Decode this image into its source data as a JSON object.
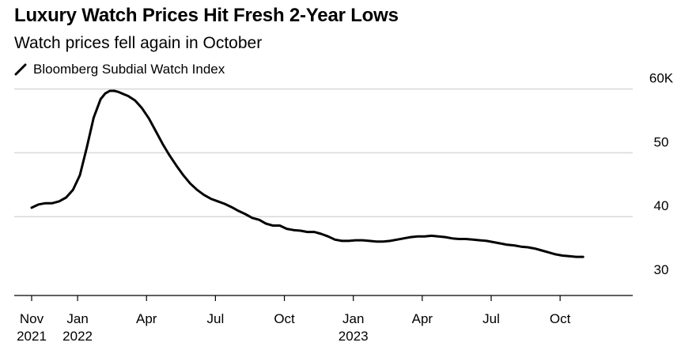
{
  "title": "Luxury Watch Prices Hit Fresh 2-Year Lows",
  "subtitle": "Watch prices fell again in October",
  "legend": {
    "label": "Bloomberg Subdial Watch Index",
    "icon": "line-icon"
  },
  "colors": {
    "line": "#000000",
    "grid": "#d9d9d9",
    "axis": "#000000",
    "text": "#000000"
  },
  "chart_data": {
    "type": "line",
    "title": "Luxury Watch Prices Hit Fresh 2-Year Lows",
    "subtitle": "Watch prices fell again in October",
    "xlabel": "",
    "ylabel": "",
    "ylim": [
      28,
      60
    ],
    "grid": true,
    "legend_position": "top-left",
    "yticks": [
      {
        "value": 30,
        "label": "30"
      },
      {
        "value": 40,
        "label": "40"
      },
      {
        "value": 50,
        "label": "50"
      },
      {
        "value": 60,
        "label": "60K"
      }
    ],
    "xticks": [
      {
        "month": 0,
        "label1": "Nov",
        "label2": "2021"
      },
      {
        "month": 2,
        "label1": "Jan",
        "label2": "2022"
      },
      {
        "month": 5,
        "label1": "Apr",
        "label2": ""
      },
      {
        "month": 8,
        "label1": "Jul",
        "label2": ""
      },
      {
        "month": 11,
        "label1": "Oct",
        "label2": ""
      },
      {
        "month": 14,
        "label1": "Jan",
        "label2": "2023"
      },
      {
        "month": 17,
        "label1": "Apr",
        "label2": ""
      },
      {
        "month": 20,
        "label1": "Jul",
        "label2": ""
      },
      {
        "month": 23,
        "label1": "Oct",
        "label2": ""
      }
    ],
    "series": [
      {
        "name": "Bloomberg Subdial Watch Index",
        "x": [
          0,
          0.3,
          0.6,
          0.9,
          1.2,
          1.5,
          1.8,
          2.1,
          2.4,
          2.7,
          3.0,
          3.2,
          3.4,
          3.6,
          3.8,
          4.0,
          4.2,
          4.5,
          4.8,
          5.1,
          5.4,
          5.7,
          6.0,
          6.3,
          6.6,
          6.9,
          7.2,
          7.5,
          7.8,
          8.1,
          8.4,
          8.7,
          9.0,
          9.3,
          9.6,
          9.9,
          10.2,
          10.5,
          10.8,
          11.1,
          11.4,
          11.7,
          12.0,
          12.3,
          12.6,
          12.9,
          13.2,
          13.5,
          13.8,
          14.1,
          14.4,
          14.7,
          15.0,
          15.3,
          15.6,
          15.9,
          16.2,
          16.5,
          16.8,
          17.1,
          17.4,
          17.7,
          18.0,
          18.3,
          18.6,
          18.9,
          19.2,
          19.5,
          19.8,
          20.1,
          20.4,
          20.7,
          21.0,
          21.3,
          21.6,
          21.9,
          22.2,
          22.5,
          22.8,
          23.1,
          23.4,
          23.7,
          24.0
        ],
        "values": [
          41.4,
          41.9,
          42.1,
          42.1,
          42.4,
          43.0,
          44.2,
          46.5,
          50.8,
          55.5,
          58.4,
          59.3,
          59.7,
          59.7,
          59.5,
          59.2,
          58.9,
          58.2,
          57.0,
          55.4,
          53.4,
          51.4,
          49.6,
          48.0,
          46.5,
          45.2,
          44.2,
          43.4,
          42.8,
          42.4,
          42.0,
          41.5,
          40.9,
          40.4,
          39.8,
          39.5,
          38.9,
          38.6,
          38.6,
          38.1,
          37.9,
          37.8,
          37.6,
          37.6,
          37.3,
          36.9,
          36.4,
          36.2,
          36.2,
          36.3,
          36.3,
          36.2,
          36.1,
          36.1,
          36.2,
          36.4,
          36.6,
          36.8,
          36.9,
          36.9,
          37.0,
          36.9,
          36.8,
          36.6,
          36.5,
          36.5,
          36.4,
          36.3,
          36.2,
          36.0,
          35.8,
          35.6,
          35.5,
          35.3,
          35.2,
          35.0,
          34.7,
          34.4,
          34.1,
          33.9,
          33.8,
          33.7,
          33.7
        ]
      }
    ]
  }
}
